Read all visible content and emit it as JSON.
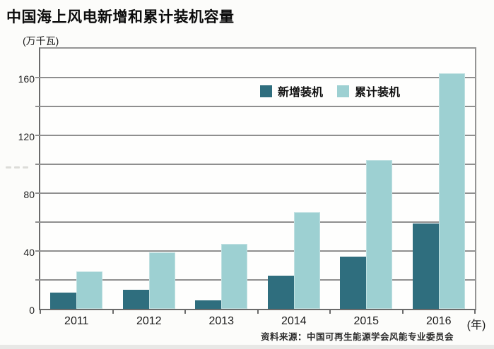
{
  "title": "中国海上风电新增和累计装机容量",
  "unit_label": "(万千瓦)",
  "x_axis_suffix": "(年)",
  "source": "资料来源：中国可再生能源学会风能专业委员会",
  "colors": {
    "new_series": "#2f6e7e",
    "cumulative_series": "#9dd0d2",
    "gridline": "#8f8f8f",
    "axis": "#6b6b6b"
  },
  "chart_data": {
    "type": "bar",
    "title": "中国海上风电新增和累计装机容量",
    "categories": [
      "2011",
      "2012",
      "2013",
      "2014",
      "2015",
      "2016"
    ],
    "series": [
      {
        "key": "new",
        "name": "新增装机",
        "color": "#2f6e7e",
        "values": [
          11,
          13,
          6,
          23,
          36,
          59
        ]
      },
      {
        "key": "cumulative",
        "name": "累计装机",
        "color": "#9dd0d2",
        "values": [
          26,
          39,
          45,
          67,
          103,
          163
        ]
      }
    ],
    "xlabel": "年",
    "ylabel": "万千瓦",
    "ylim": [
      0,
      180
    ],
    "ytick_step": 20,
    "ytick_label_step": 40,
    "ytick_labels": [
      "0",
      "40",
      "80",
      "120",
      "160"
    ],
    "grid": true,
    "legend_position": "inside-top-center"
  }
}
